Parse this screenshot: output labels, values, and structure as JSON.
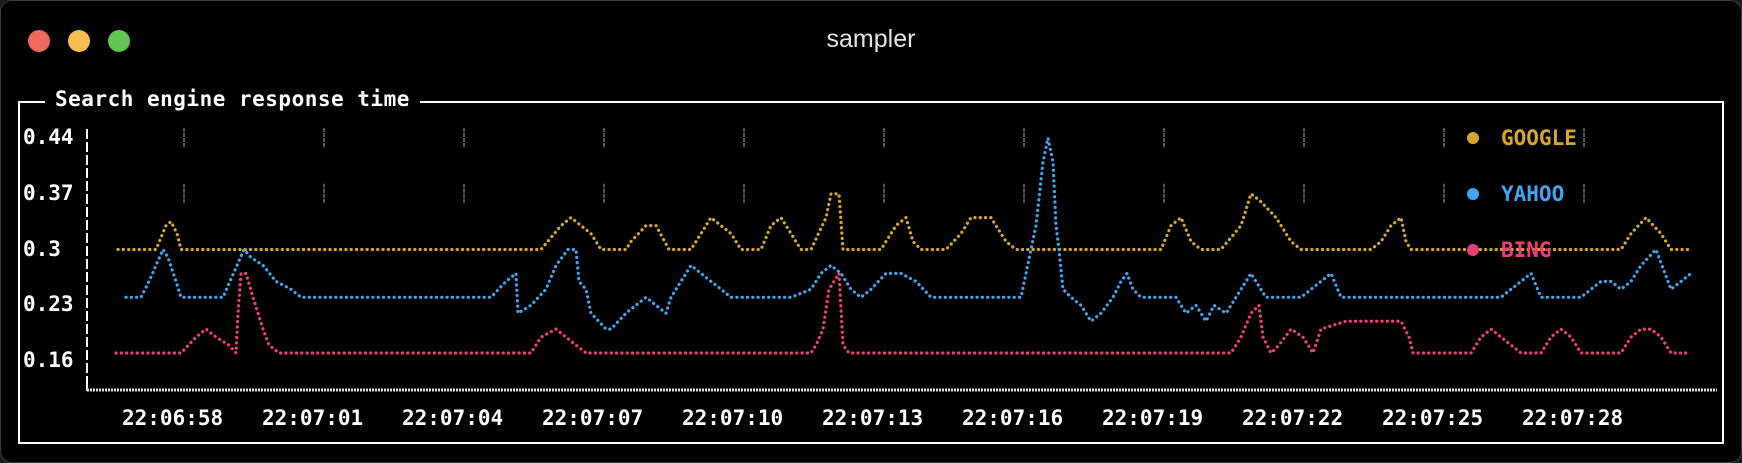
{
  "window": {
    "title": "sampler",
    "controls": [
      "close",
      "minimize",
      "maximize"
    ]
  },
  "panel": {
    "title": "Search engine response time"
  },
  "colors": {
    "google": "#d6a728",
    "yahoo": "#3ea6f2",
    "bing": "#ec3f7a",
    "axis": "#ffffff",
    "grid": "#555555"
  },
  "legend": [
    {
      "label": "GOOGLE",
      "color": "#d6a728"
    },
    {
      "label": "YAHOO",
      "color": "#3ea6f2"
    },
    {
      "label": "BING",
      "color": "#ec3f7a"
    }
  ],
  "chart_data": {
    "type": "line",
    "title": "Search engine response time",
    "xlabel": "",
    "ylabel": "",
    "ylim": [
      0.16,
      0.44
    ],
    "y_ticks": [
      "0.44",
      "0.37",
      "0.3",
      "0.23",
      "0.16"
    ],
    "x_ticks": [
      "22:06:58",
      "22:07:01",
      "22:07:04",
      "22:07:07",
      "22:07:10",
      "22:07:13",
      "22:07:16",
      "22:07:19",
      "22:07:22",
      "22:07:25",
      "22:07:28"
    ],
    "grid": true,
    "legend_position": "top-right",
    "series": [
      {
        "name": "GOOGLE",
        "color": "#d6a728",
        "points": [
          [
            117,
            0.3
          ],
          [
            155,
            0.3
          ],
          [
            165,
            0.33
          ],
          [
            170,
            0.335
          ],
          [
            176,
            0.32
          ],
          [
            180,
            0.3
          ],
          [
            540,
            0.3
          ],
          [
            560,
            0.33
          ],
          [
            570,
            0.34
          ],
          [
            590,
            0.32
          ],
          [
            600,
            0.3
          ],
          [
            625,
            0.3
          ],
          [
            630,
            0.31
          ],
          [
            645,
            0.33
          ],
          [
            655,
            0.33
          ],
          [
            668,
            0.3
          ],
          [
            690,
            0.3
          ],
          [
            700,
            0.32
          ],
          [
            710,
            0.34
          ],
          [
            730,
            0.32
          ],
          [
            740,
            0.3
          ],
          [
            760,
            0.3
          ],
          [
            770,
            0.33
          ],
          [
            780,
            0.34
          ],
          [
            790,
            0.32
          ],
          [
            800,
            0.3
          ],
          [
            810,
            0.3
          ],
          [
            825,
            0.34
          ],
          [
            830,
            0.37
          ],
          [
            838,
            0.37
          ],
          [
            842,
            0.3
          ],
          [
            880,
            0.3
          ],
          [
            895,
            0.33
          ],
          [
            905,
            0.34
          ],
          [
            912,
            0.31
          ],
          [
            920,
            0.3
          ],
          [
            945,
            0.3
          ],
          [
            960,
            0.32
          ],
          [
            970,
            0.34
          ],
          [
            990,
            0.34
          ],
          [
            1005,
            0.31
          ],
          [
            1015,
            0.3
          ],
          [
            1040,
            0.3
          ],
          [
            1060,
            0.3
          ],
          [
            1120,
            0.3
          ],
          [
            1160,
            0.3
          ],
          [
            1170,
            0.33
          ],
          [
            1180,
            0.34
          ],
          [
            1190,
            0.31
          ],
          [
            1200,
            0.3
          ],
          [
            1220,
            0.3
          ],
          [
            1240,
            0.33
          ],
          [
            1250,
            0.37
          ],
          [
            1260,
            0.36
          ],
          [
            1275,
            0.34
          ],
          [
            1290,
            0.31
          ],
          [
            1300,
            0.3
          ],
          [
            1370,
            0.3
          ],
          [
            1380,
            0.31
          ],
          [
            1390,
            0.33
          ],
          [
            1400,
            0.34
          ],
          [
            1405,
            0.31
          ],
          [
            1410,
            0.3
          ],
          [
            1620,
            0.3
          ],
          [
            1630,
            0.32
          ],
          [
            1645,
            0.34
          ],
          [
            1660,
            0.32
          ],
          [
            1670,
            0.3
          ],
          [
            1690,
            0.3
          ]
        ]
      },
      {
        "name": "YAHOO",
        "color": "#3ea6f2",
        "points": [
          [
            125,
            0.24
          ],
          [
            140,
            0.24
          ],
          [
            148,
            0.26
          ],
          [
            155,
            0.28
          ],
          [
            162,
            0.3
          ],
          [
            167,
            0.29
          ],
          [
            175,
            0.26
          ],
          [
            180,
            0.24
          ],
          [
            190,
            0.24
          ],
          [
            222,
            0.24
          ],
          [
            243,
            0.3
          ],
          [
            250,
            0.29
          ],
          [
            262,
            0.28
          ],
          [
            275,
            0.26
          ],
          [
            290,
            0.25
          ],
          [
            300,
            0.24
          ],
          [
            490,
            0.24
          ],
          [
            505,
            0.26
          ],
          [
            515,
            0.27
          ],
          [
            517,
            0.22
          ],
          [
            530,
            0.23
          ],
          [
            545,
            0.25
          ],
          [
            555,
            0.28
          ],
          [
            567,
            0.3
          ],
          [
            575,
            0.3
          ],
          [
            578,
            0.26
          ],
          [
            585,
            0.25
          ],
          [
            590,
            0.22
          ],
          [
            605,
            0.2
          ],
          [
            610,
            0.2
          ],
          [
            625,
            0.22
          ],
          [
            645,
            0.24
          ],
          [
            655,
            0.23
          ],
          [
            665,
            0.22
          ],
          [
            670,
            0.24
          ],
          [
            680,
            0.26
          ],
          [
            690,
            0.28
          ],
          [
            700,
            0.27
          ],
          [
            710,
            0.26
          ],
          [
            720,
            0.25
          ],
          [
            730,
            0.24
          ],
          [
            790,
            0.24
          ],
          [
            810,
            0.25
          ],
          [
            820,
            0.27
          ],
          [
            830,
            0.28
          ],
          [
            840,
            0.27
          ],
          [
            850,
            0.25
          ],
          [
            860,
            0.24
          ],
          [
            870,
            0.25
          ],
          [
            885,
            0.27
          ],
          [
            900,
            0.27
          ],
          [
            915,
            0.26
          ],
          [
            930,
            0.24
          ],
          [
            1020,
            0.24
          ],
          [
            1025,
            0.27
          ],
          [
            1030,
            0.3
          ],
          [
            1035,
            0.33
          ],
          [
            1042,
            0.41
          ],
          [
            1047,
            0.44
          ],
          [
            1052,
            0.41
          ],
          [
            1055,
            0.33
          ],
          [
            1058,
            0.3
          ],
          [
            1062,
            0.25
          ],
          [
            1070,
            0.24
          ],
          [
            1080,
            0.23
          ],
          [
            1090,
            0.21
          ],
          [
            1100,
            0.22
          ],
          [
            1112,
            0.24
          ],
          [
            1120,
            0.26
          ],
          [
            1126,
            0.27
          ],
          [
            1132,
            0.25
          ],
          [
            1140,
            0.24
          ],
          [
            1175,
            0.24
          ],
          [
            1185,
            0.22
          ],
          [
            1195,
            0.23
          ],
          [
            1205,
            0.21
          ],
          [
            1213,
            0.23
          ],
          [
            1225,
            0.22
          ],
          [
            1235,
            0.24
          ],
          [
            1250,
            0.27
          ],
          [
            1255,
            0.26
          ],
          [
            1265,
            0.24
          ],
          [
            1300,
            0.24
          ],
          [
            1310,
            0.25
          ],
          [
            1320,
            0.26
          ],
          [
            1330,
            0.27
          ],
          [
            1340,
            0.24
          ],
          [
            1500,
            0.24
          ],
          [
            1510,
            0.25
          ],
          [
            1520,
            0.26
          ],
          [
            1530,
            0.27
          ],
          [
            1540,
            0.24
          ],
          [
            1580,
            0.24
          ],
          [
            1590,
            0.25
          ],
          [
            1600,
            0.26
          ],
          [
            1610,
            0.26
          ],
          [
            1620,
            0.25
          ],
          [
            1630,
            0.26
          ],
          [
            1640,
            0.28
          ],
          [
            1655,
            0.3
          ],
          [
            1670,
            0.25
          ],
          [
            1680,
            0.26
          ],
          [
            1690,
            0.27
          ]
        ]
      },
      {
        "name": "BING",
        "color": "#ec3f7a",
        "points": [
          [
            115,
            0.17
          ],
          [
            180,
            0.17
          ],
          [
            195,
            0.19
          ],
          [
            205,
            0.2
          ],
          [
            215,
            0.19
          ],
          [
            228,
            0.18
          ],
          [
            235,
            0.17
          ],
          [
            237,
            0.22
          ],
          [
            240,
            0.27
          ],
          [
            245,
            0.27
          ],
          [
            252,
            0.24
          ],
          [
            262,
            0.2
          ],
          [
            268,
            0.18
          ],
          [
            278,
            0.17
          ],
          [
            530,
            0.17
          ],
          [
            540,
            0.19
          ],
          [
            555,
            0.2
          ],
          [
            565,
            0.19
          ],
          [
            575,
            0.18
          ],
          [
            585,
            0.17
          ],
          [
            810,
            0.17
          ],
          [
            815,
            0.18
          ],
          [
            822,
            0.2
          ],
          [
            828,
            0.25
          ],
          [
            838,
            0.27
          ],
          [
            842,
            0.18
          ],
          [
            848,
            0.17
          ],
          [
            1230,
            0.17
          ],
          [
            1240,
            0.19
          ],
          [
            1250,
            0.22
          ],
          [
            1258,
            0.23
          ],
          [
            1262,
            0.19
          ],
          [
            1270,
            0.17
          ],
          [
            1278,
            0.18
          ],
          [
            1290,
            0.2
          ],
          [
            1302,
            0.19
          ],
          [
            1312,
            0.17
          ],
          [
            1320,
            0.2
          ],
          [
            1345,
            0.21
          ],
          [
            1400,
            0.21
          ],
          [
            1408,
            0.19
          ],
          [
            1412,
            0.17
          ],
          [
            1470,
            0.17
          ],
          [
            1480,
            0.19
          ],
          [
            1490,
            0.2
          ],
          [
            1500,
            0.19
          ],
          [
            1510,
            0.18
          ],
          [
            1520,
            0.17
          ],
          [
            1540,
            0.17
          ],
          [
            1550,
            0.19
          ],
          [
            1560,
            0.2
          ],
          [
            1570,
            0.19
          ],
          [
            1580,
            0.17
          ],
          [
            1620,
            0.17
          ],
          [
            1630,
            0.19
          ],
          [
            1640,
            0.2
          ],
          [
            1650,
            0.2
          ],
          [
            1660,
            0.19
          ],
          [
            1670,
            0.17
          ],
          [
            1690,
            0.17
          ]
        ]
      }
    ]
  }
}
